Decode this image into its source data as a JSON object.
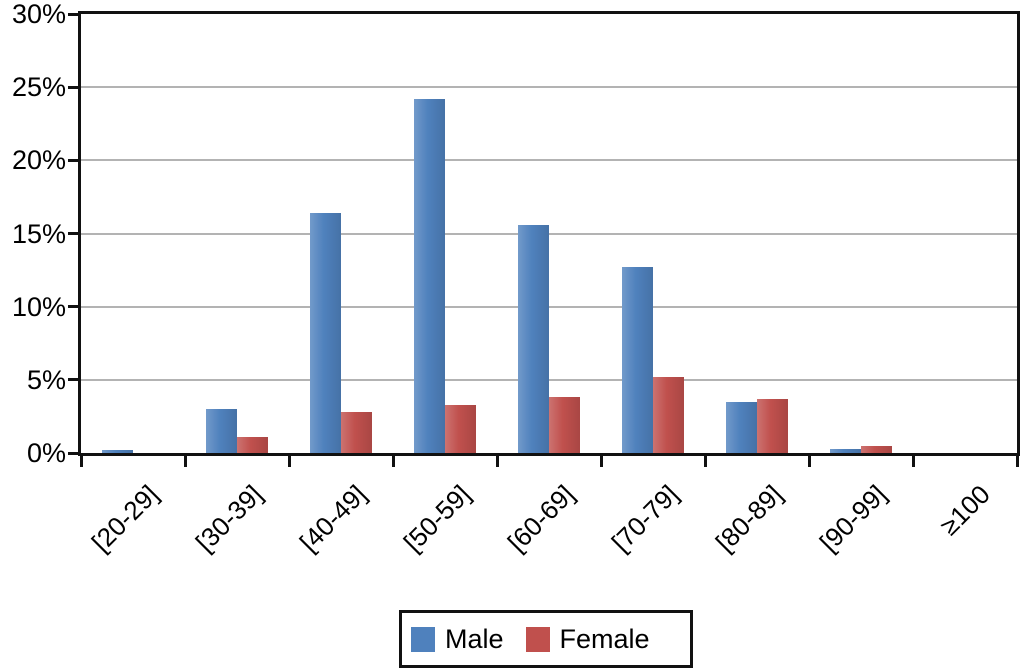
{
  "chart_data": {
    "type": "bar",
    "title": "",
    "xlabel": "",
    "ylabel": "",
    "categories": [
      "[20-29]",
      "[30-39]",
      "[40-49]",
      "[50-59]",
      "[60-69]",
      "[70-79]",
      "[80-89]",
      "[90-99]",
      "≥100"
    ],
    "series": [
      {
        "name": "Male",
        "color": "#4F81BD",
        "values": [
          0.2,
          3.0,
          16.4,
          24.2,
          15.6,
          12.7,
          3.5,
          0.3,
          0
        ]
      },
      {
        "name": "Female",
        "color": "#C0504D",
        "values": [
          0,
          1.1,
          2.8,
          3.3,
          3.8,
          5.2,
          3.7,
          0.5,
          0
        ]
      }
    ],
    "ylim": [
      0,
      30
    ],
    "ytick_step": 5,
    "ytick_labels": [
      "0%",
      "5%",
      "10%",
      "15%",
      "20%",
      "25%",
      "30%"
    ],
    "grid": true,
    "legend_position": "bottom-center"
  },
  "colors": {
    "grid": "#b3b3b3",
    "axis": "#111111",
    "background": "#ffffff",
    "text": "#000000"
  }
}
